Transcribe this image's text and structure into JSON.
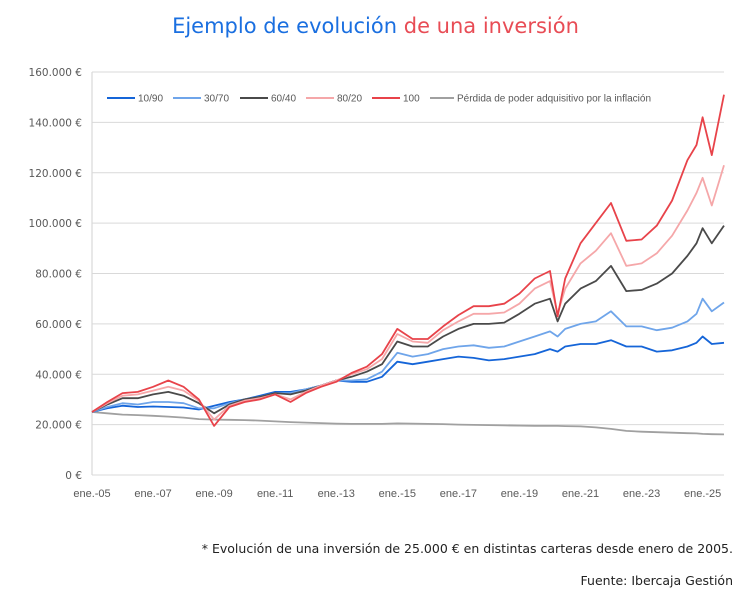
{
  "title": {
    "part1": "Ejemplo de evolución",
    "part2": "de una inversión"
  },
  "colors": {
    "title_blue": "#1a6fe0",
    "title_red": "#e84c55"
  },
  "footnote": "* Evolución de una inversión de 25.000 € en distintas carteras desde enero de 2005.",
  "source": "Fuente: Ibercaja Gestión",
  "chart_data": {
    "type": "line",
    "title": "Ejemplo de evolución de una inversión",
    "xlabel": "",
    "ylabel": "",
    "ylim": [
      0,
      160000
    ],
    "xlim": [
      2005.0,
      2025.7
    ],
    "grid": true,
    "legend_position": "top",
    "y_ticks": [
      0,
      20000,
      40000,
      60000,
      80000,
      100000,
      120000,
      140000,
      160000
    ],
    "y_tick_labels": [
      "0 €",
      "20.000 €",
      "40.000 €",
      "60.000 €",
      "80.000 €",
      "100.000 €",
      "120.000 €",
      "140.000 €",
      "160.000 €"
    ],
    "x_ticks": [
      2005,
      2007,
      2009,
      2011,
      2013,
      2015,
      2017,
      2019,
      2021,
      2023,
      2025
    ],
    "x_tick_labels": [
      "ene.-05",
      "ene.-07",
      "ene.-09",
      "ene.-11",
      "ene.-13",
      "ene.-15",
      "ene.-17",
      "ene.-19",
      "ene.-21",
      "ene.-23",
      "ene.-25"
    ],
    "x": [
      2005.0,
      2005.5,
      2006.0,
      2006.5,
      2007.0,
      2007.5,
      2008.0,
      2008.5,
      2009.0,
      2009.5,
      2010.0,
      2010.5,
      2011.0,
      2011.5,
      2012.0,
      2012.5,
      2013.0,
      2013.5,
      2014.0,
      2014.5,
      2015.0,
      2015.5,
      2016.0,
      2016.5,
      2017.0,
      2017.5,
      2018.0,
      2018.5,
      2019.0,
      2019.5,
      2020.0,
      2020.25,
      2020.5,
      2021.0,
      2021.5,
      2022.0,
      2022.5,
      2023.0,
      2023.5,
      2024.0,
      2024.5,
      2024.8,
      2025.0,
      2025.3,
      2025.7
    ],
    "series": [
      {
        "name": "10/90",
        "color": "#1565d8",
        "values": [
          25000,
          26500,
          27500,
          27000,
          27200,
          27000,
          26800,
          26000,
          27500,
          29000,
          30000,
          31500,
          33000,
          33000,
          34000,
          35500,
          37500,
          37000,
          37000,
          39000,
          45000,
          44000,
          45000,
          46000,
          47000,
          46500,
          45500,
          46000,
          47000,
          48000,
          50000,
          49000,
          51000,
          52000,
          52000,
          53500,
          51000,
          51000,
          49000,
          49500,
          51000,
          52500,
          55000,
          52000,
          52500
        ]
      },
      {
        "name": "30/70",
        "color": "#6fa5ea",
        "values": [
          25000,
          27000,
          28500,
          28000,
          29000,
          29000,
          28500,
          26500,
          26500,
          28500,
          30000,
          31000,
          32500,
          32500,
          34000,
          35500,
          37500,
          37500,
          38000,
          41000,
          48500,
          47000,
          48000,
          50000,
          51000,
          51500,
          50500,
          51000,
          53000,
          55000,
          57000,
          55000,
          58000,
          60000,
          61000,
          65000,
          59000,
          59000,
          57500,
          58500,
          61000,
          64000,
          70000,
          65000,
          68500
        ]
      },
      {
        "name": "60/40",
        "color": "#4a4a4a",
        "values": [
          25000,
          28000,
          30500,
          30500,
          32000,
          33000,
          31500,
          28500,
          24500,
          28000,
          30000,
          31000,
          32500,
          32000,
          33500,
          35500,
          37500,
          39000,
          41000,
          44000,
          53000,
          51000,
          51000,
          55000,
          58000,
          60000,
          60000,
          60500,
          64000,
          68000,
          70000,
          61000,
          68000,
          74000,
          77000,
          83000,
          73000,
          73500,
          76000,
          80000,
          87000,
          92000,
          98000,
          92000,
          99000
        ]
      },
      {
        "name": "80/20",
        "color": "#f5a7a9",
        "values": [
          25000,
          28500,
          31500,
          32000,
          33500,
          35000,
          33500,
          29500,
          22000,
          27500,
          29500,
          30500,
          32000,
          30000,
          33000,
          35500,
          37500,
          40000,
          42000,
          46000,
          56000,
          53000,
          52500,
          57500,
          61000,
          64000,
          64000,
          64500,
          68000,
          74000,
          77000,
          64000,
          74000,
          84000,
          89000,
          96000,
          83000,
          84000,
          88000,
          95000,
          105000,
          112000,
          118000,
          107000,
          123000
        ]
      },
      {
        "name": "100",
        "color": "#e8434a",
        "values": [
          25000,
          29000,
          32500,
          33000,
          35000,
          37500,
          35000,
          30000,
          19500,
          27000,
          29000,
          30000,
          32000,
          29000,
          32500,
          35000,
          37000,
          40500,
          43000,
          48000,
          58000,
          54000,
          54000,
          59000,
          63500,
          67000,
          67000,
          68000,
          72000,
          78000,
          81000,
          63000,
          78000,
          92000,
          100000,
          108000,
          93000,
          93500,
          99000,
          109000,
          125000,
          131000,
          142000,
          127000,
          151000
        ]
      },
      {
        "name": "Pérdida de poder adquisitivo por la inflación",
        "color": "#a0a0a0",
        "values": [
          25000,
          24500,
          24000,
          23800,
          23500,
          23200,
          22800,
          22200,
          22000,
          21900,
          21800,
          21600,
          21300,
          21000,
          20800,
          20600,
          20400,
          20300,
          20300,
          20300,
          20500,
          20400,
          20300,
          20200,
          20000,
          19900,
          19800,
          19700,
          19600,
          19500,
          19500,
          19500,
          19400,
          19300,
          18900,
          18300,
          17500,
          17200,
          17000,
          16800,
          16600,
          16500,
          16300,
          16200,
          16100
        ]
      }
    ]
  }
}
